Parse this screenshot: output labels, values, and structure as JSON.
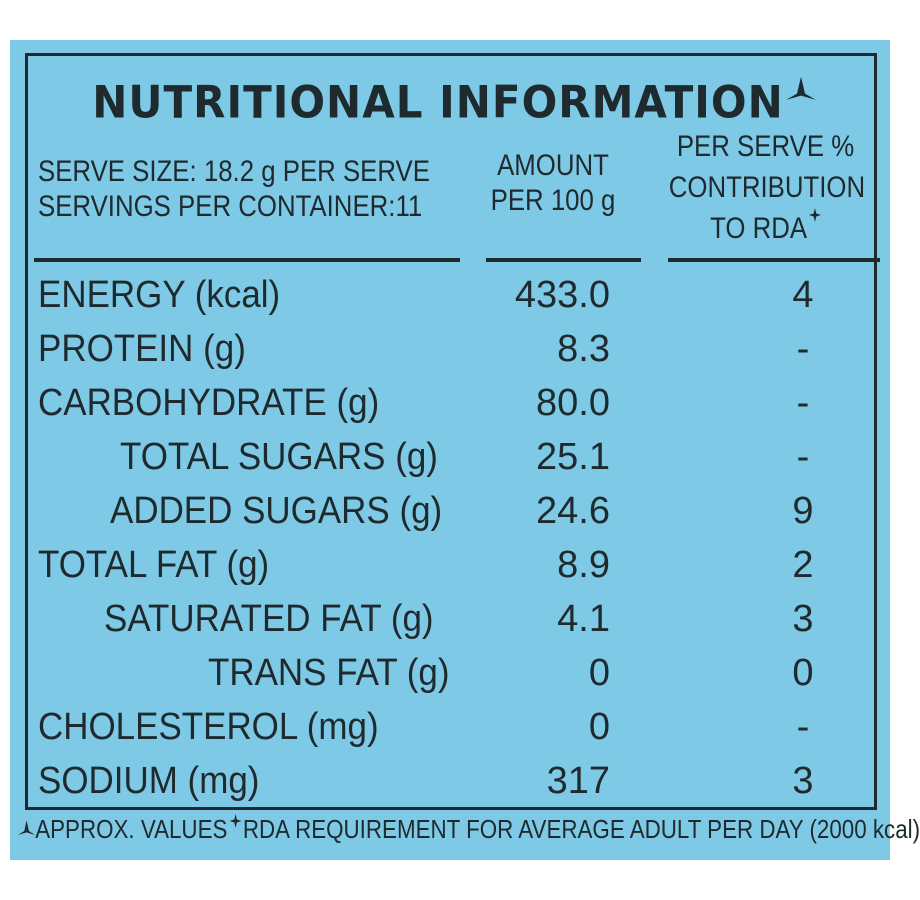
{
  "title": "NUTRITIONAL INFORMATION",
  "header": {
    "serve_size": "SERVE SIZE: 18.2 g PER SERVE",
    "servings": "SERVINGS PER CONTAINER:11",
    "amount_line1": "AMOUNT",
    "amount_line2": "PER 100 g",
    "rda_line1": "PER SERVE %",
    "rda_line2": "CONTRIBUTION",
    "rda_line3": "TO RDA"
  },
  "rows": [
    {
      "name": "ENERGY (kcal)",
      "amount": "433.0",
      "rda": "4",
      "indent": 0
    },
    {
      "name": "PROTEIN (g)",
      "amount": "8.3",
      "rda": "-",
      "indent": 0
    },
    {
      "name": "CARBOHYDRATE (g)",
      "amount": "80.0",
      "rda": "-",
      "indent": 0
    },
    {
      "name": "TOTAL SUGARS (g)",
      "amount": "25.1",
      "rda": "-",
      "indent": 1
    },
    {
      "name": "ADDED SUGARS (g)",
      "amount": "24.6",
      "rda": "9",
      "indent": 1
    },
    {
      "name": "TOTAL FAT (g)",
      "amount": "8.9",
      "rda": "2",
      "indent": 0
    },
    {
      "name": "SATURATED FAT (g)",
      "amount": "4.1",
      "rda": "3",
      "indent": 1
    },
    {
      "name": "TRANS FAT (g)",
      "amount": "0",
      "rda": "0",
      "indent": 2
    },
    {
      "name": "CHOLESTEROL (mg)",
      "amount": "0",
      "rda": "-",
      "indent": 0
    },
    {
      "name": "SODIUM (mg)",
      "amount": "317",
      "rda": "3",
      "indent": 0
    }
  ],
  "footer": {
    "approx": "APPROX. VALUES",
    "rda_note": "RDA REQUIREMENT FOR AVERAGE ADULT PER DAY (2000 kcal)"
  },
  "colors": {
    "background": "#7ec9e6",
    "ink": "#1f2a2e"
  },
  "icons": {
    "approx_symbol": "delta-mark-icon",
    "rda_symbol": "four-point-star-icon"
  }
}
